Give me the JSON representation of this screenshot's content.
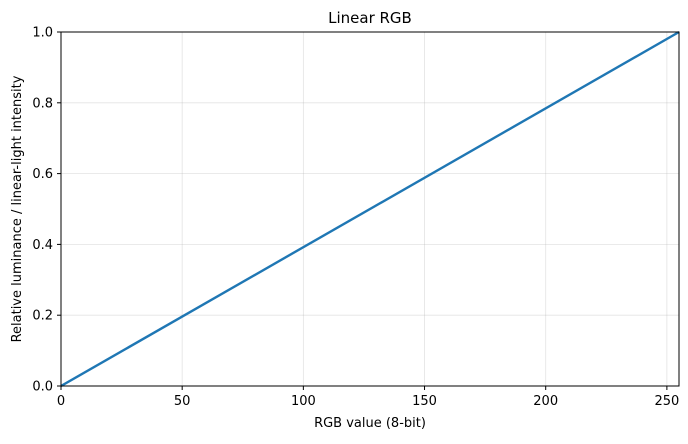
{
  "chart_data": {
    "type": "line",
    "title": "Linear RGB",
    "xlabel": "RGB value (8-bit)",
    "ylabel": "Relative luminance / linear-light intensity",
    "xlim": [
      0,
      255
    ],
    "ylim": [
      0,
      1
    ],
    "xticks": [
      0,
      50,
      100,
      150,
      200,
      250
    ],
    "xtick_labels": [
      "0",
      "50",
      "100",
      "150",
      "200",
      "250"
    ],
    "yticks": [
      0,
      0.2,
      0.4,
      0.6,
      0.8,
      1.0
    ],
    "ytick_labels": [
      "0.0",
      "0.2",
      "0.4",
      "0.6",
      "0.8",
      "1.0"
    ],
    "grid": true,
    "legend": "none",
    "series": [
      {
        "color": "#1f77b4",
        "x": [
          0,
          255
        ],
        "y": [
          0,
          1
        ]
      }
    ]
  }
}
